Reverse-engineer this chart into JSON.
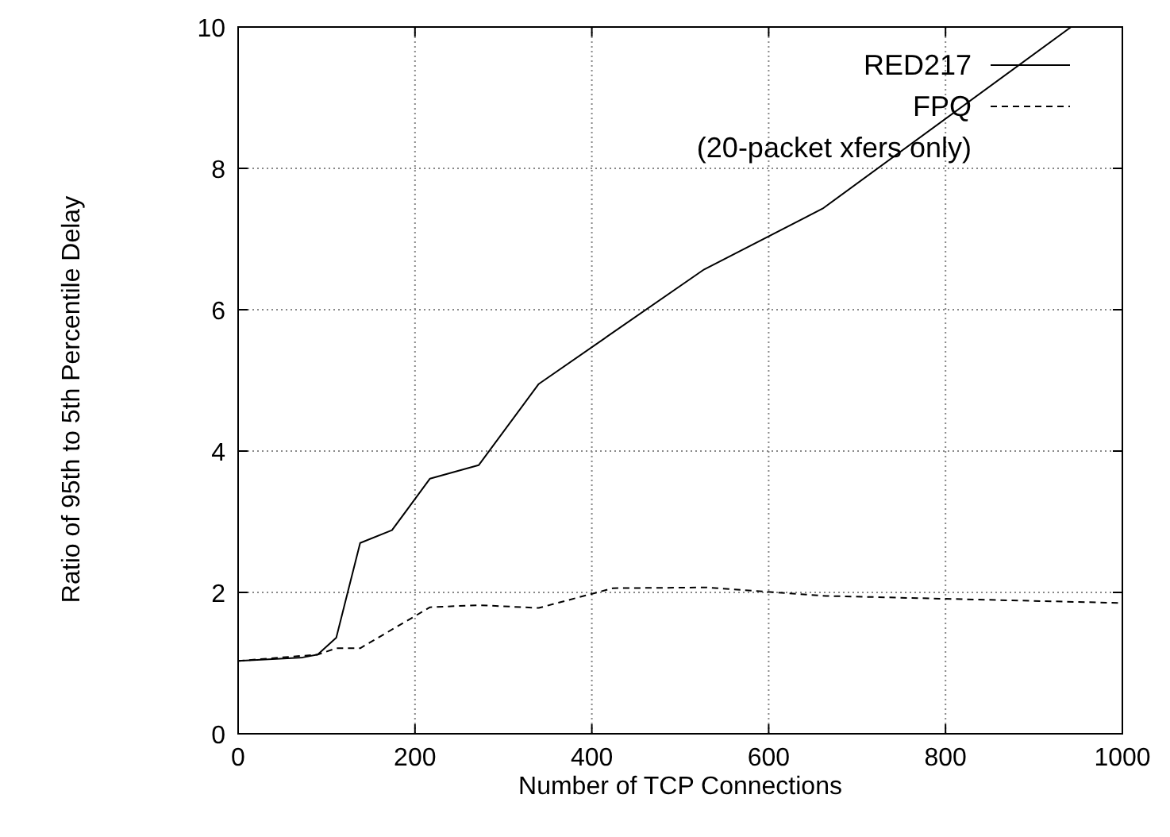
{
  "chart_data": {
    "type": "line",
    "xlabel": "Number of TCP Connections",
    "ylabel": "Ratio of 95th to 5th Percentile Delay",
    "xlim": [
      0,
      1000
    ],
    "xticks": [
      0,
      200,
      400,
      600,
      800,
      1000
    ],
    "ylim": [
      0,
      10
    ],
    "yticks": [
      0,
      2,
      4,
      6,
      8,
      10
    ],
    "grid": true,
    "legend": "top right",
    "annotations": [
      "(20-packet xfers only)"
    ],
    "series": [
      {
        "name": "RED217",
        "color": "#000000",
        "line_style": "solid",
        "x": [
          0,
          73,
          90,
          111,
          138,
          174,
          217,
          272,
          340,
          527,
          661,
          942
        ],
        "values": [
          1.03,
          1.08,
          1.12,
          1.36,
          2.7,
          2.88,
          3.61,
          3.8,
          4.95,
          6.57,
          7.43,
          10
        ]
      },
      {
        "name": "FPQ",
        "color": "#000000",
        "line_style": "dashed",
        "x": [
          0,
          90,
          111,
          138,
          217,
          272,
          340,
          424,
          530,
          665,
          1000
        ],
        "values": [
          1.03,
          1.12,
          1.21,
          1.21,
          1.79,
          1.82,
          1.78,
          2.06,
          2.07,
          1.95,
          1.85
        ]
      }
    ]
  }
}
